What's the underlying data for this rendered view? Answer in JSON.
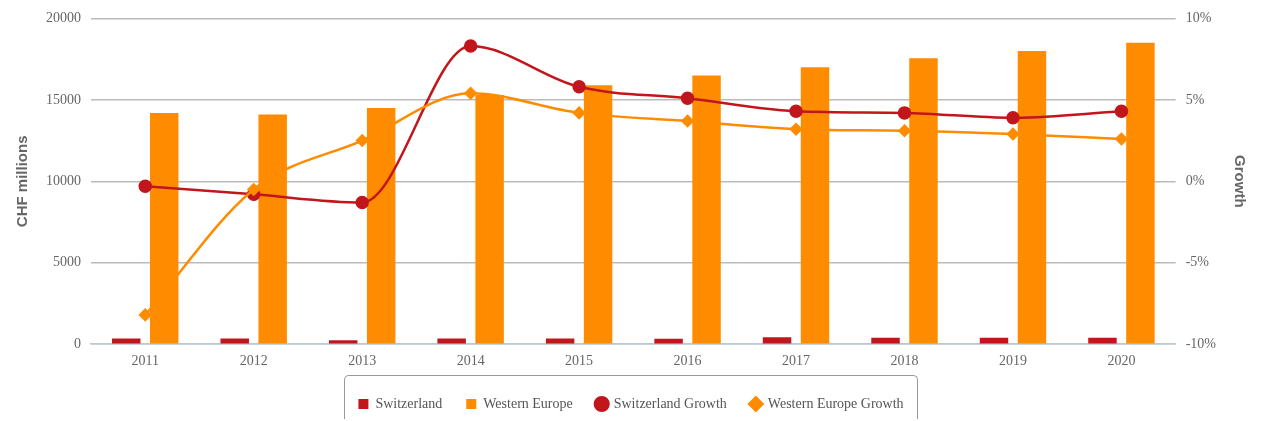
{
  "chart_data": {
    "type": "bar",
    "xlabel": null,
    "ylabel": "CHF millions",
    "y2label": "Growth",
    "categories": [
      "2011",
      "2012",
      "2013",
      "2014",
      "2015",
      "2016",
      "2017",
      "2018",
      "2019",
      "2020"
    ],
    "series": [
      {
        "name": "Switzerland",
        "color": "#c0161c",
        "values": [
          350,
          350,
          250,
          350,
          350,
          330,
          430,
          400,
          400,
          400
        ]
      },
      {
        "name": "Western Europe",
        "color": "#ff8c00",
        "values": [
          14200,
          14100,
          14500,
          15300,
          15900,
          16500,
          17000,
          17550,
          18000,
          18500
        ]
      },
      {
        "name": "Switzerland Growth",
        "type": "line",
        "axis": "y2",
        "marker": "circle",
        "color": "#c0161c",
        "values": [
          -0.3,
          -0.8,
          -1.3,
          8.3,
          5.8,
          5.1,
          4.3,
          4.2,
          3.9,
          4.3
        ]
      },
      {
        "name": "Western Europe Growth",
        "type": "line",
        "axis": "y2",
        "marker": "diamond",
        "color": "#ff8c00",
        "values": [
          -8.2,
          -0.5,
          2.5,
          5.4,
          4.2,
          3.7,
          3.2,
          3.1,
          2.9,
          2.6
        ]
      }
    ],
    "ylim": [
      0,
      20000
    ],
    "yticks": [
      0,
      5000,
      10000,
      15000,
      20000
    ],
    "y2lim": [
      -10,
      10
    ],
    "y2ticks": [
      {
        "value": -10,
        "label": "-10%"
      },
      {
        "value": -5,
        "label": "-5%"
      },
      {
        "value": 0,
        "label": "0%"
      },
      {
        "value": 5,
        "label": "5%"
      },
      {
        "value": 10,
        "label": "10%"
      }
    ],
    "grid": "y",
    "legend": "bottom"
  }
}
